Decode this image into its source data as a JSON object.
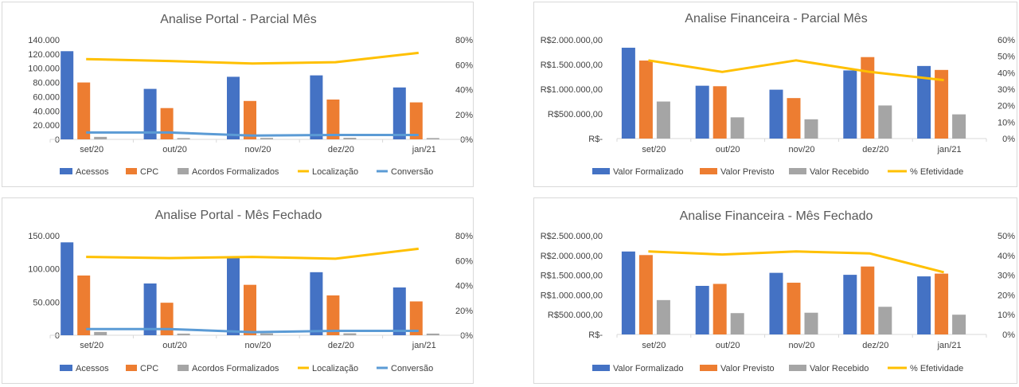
{
  "chart_data": [
    {
      "type": "bar",
      "title": "Analise Portal - Parcial Mês",
      "categories": [
        "set/20",
        "out/20",
        "nov/20",
        "dez/20",
        "jan/21"
      ],
      "y_ticks": [
        "0",
        "20.000",
        "40.000",
        "60.000",
        "80.000",
        "100.000",
        "120.000",
        "140.000"
      ],
      "ylim": [
        0,
        140000
      ],
      "y2_ticks": [
        "0%",
        "20%",
        "40%",
        "60%",
        "80%"
      ],
      "y2lim": [
        0,
        0.8
      ],
      "grid": false,
      "legend_position": "bottom",
      "series": [
        {
          "name": "Acessos",
          "kind": "bar",
          "color": "#4472C4",
          "values": [
            124000,
            71000,
            88000,
            90000,
            73000
          ]
        },
        {
          "name": "CPC",
          "kind": "bar",
          "color": "#ED7D31",
          "values": [
            80000,
            44000,
            54000,
            56000,
            52000
          ]
        },
        {
          "name": "Acordos Formalizados",
          "kind": "bar",
          "color": "#A5A5A5",
          "values": [
            3500,
            1800,
            2000,
            2200,
            1800
          ]
        },
        {
          "name": "Localização",
          "kind": "line",
          "axis": "secondary",
          "color": "#FFC000",
          "values": [
            0.645,
            0.63,
            0.61,
            0.62,
            0.695
          ]
        },
        {
          "name": "Conversão",
          "kind": "line",
          "axis": "secondary",
          "color": "#5B9BD5",
          "values": [
            0.055,
            0.055,
            0.03,
            0.035,
            0.035
          ]
        }
      ]
    },
    {
      "type": "bar",
      "title": "Analise Financeira - Parcial Mês",
      "categories": [
        "set/20",
        "out/20",
        "nov/20",
        "dez/20",
        "jan/21"
      ],
      "y_ticks": [
        "R$-",
        "R$500.000,00",
        "R$1.000.000,00",
        "R$1.500.000,00",
        "R$2.000.000,00"
      ],
      "ylim": [
        0,
        2000000
      ],
      "y2_ticks": [
        "0%",
        "10%",
        "20%",
        "30%",
        "40%",
        "50%",
        "60%"
      ],
      "y2lim": [
        0,
        0.6
      ],
      "grid": false,
      "legend_position": "bottom",
      "series": [
        {
          "name": "Valor Formalizado",
          "kind": "bar",
          "color": "#4472C4",
          "values": [
            1840000,
            1070000,
            990000,
            1380000,
            1470000
          ]
        },
        {
          "name": "Valor Previsto",
          "kind": "bar",
          "color": "#ED7D31",
          "values": [
            1580000,
            1060000,
            820000,
            1650000,
            1390000
          ]
        },
        {
          "name": "Valor Recebido",
          "kind": "bar",
          "color": "#A5A5A5",
          "values": [
            750000,
            430000,
            390000,
            670000,
            490000
          ]
        },
        {
          "name": "% Efetividade",
          "kind": "line",
          "axis": "secondary",
          "color": "#FFC000",
          "values": [
            0.475,
            0.405,
            0.475,
            0.405,
            0.355
          ]
        }
      ]
    },
    {
      "type": "bar",
      "title": "Analise Portal - Mês Fechado",
      "categories": [
        "set/20",
        "out/20",
        "nov/20",
        "dez/20",
        "jan/21"
      ],
      "y_ticks": [
        "0",
        "50.000",
        "100.000",
        "150.000"
      ],
      "ylim": [
        0,
        150000
      ],
      "y2_ticks": [
        "0%",
        "20%",
        "40%",
        "60%",
        "80%"
      ],
      "y2lim": [
        0,
        0.8
      ],
      "grid": false,
      "legend_position": "bottom",
      "series": [
        {
          "name": "Acessos",
          "kind": "bar",
          "color": "#4472C4",
          "values": [
            140000,
            78000,
            118000,
            95000,
            72000
          ]
        },
        {
          "name": "CPC",
          "kind": "bar",
          "color": "#ED7D31",
          "values": [
            90000,
            49000,
            76000,
            60000,
            51000
          ]
        },
        {
          "name": "Acordos Formalizados",
          "kind": "bar",
          "color": "#A5A5A5",
          "values": [
            5000,
            2500,
            2800,
            2900,
            2500
          ]
        },
        {
          "name": "Localização",
          "kind": "line",
          "axis": "secondary",
          "color": "#FFC000",
          "values": [
            0.63,
            0.62,
            0.63,
            0.615,
            0.695
          ]
        },
        {
          "name": "Conversão",
          "kind": "line",
          "axis": "secondary",
          "color": "#5B9BD5",
          "values": [
            0.05,
            0.05,
            0.025,
            0.035,
            0.035
          ]
        }
      ]
    },
    {
      "type": "bar",
      "title": "Analise Financeira - Mês Fechado",
      "categories": [
        "set/20",
        "out/20",
        "nov/20",
        "dez/20",
        "jan/21"
      ],
      "y_ticks": [
        "R$-",
        "R$500.000,00",
        "R$1.000.000,00",
        "R$1.500.000,00",
        "R$2.000.000,00",
        "R$2.500.000,00"
      ],
      "ylim": [
        0,
        2500000
      ],
      "y2_ticks": [
        "0%",
        "10%",
        "20%",
        "30%",
        "40%",
        "50%"
      ],
      "y2lim": [
        0,
        0.5
      ],
      "grid": false,
      "legend_position": "bottom",
      "series": [
        {
          "name": "Valor Formalizado",
          "kind": "bar",
          "color": "#4472C4",
          "values": [
            2100000,
            1230000,
            1560000,
            1510000,
            1470000
          ]
        },
        {
          "name": "Valor Previsto",
          "kind": "bar",
          "color": "#ED7D31",
          "values": [
            2010000,
            1280000,
            1310000,
            1720000,
            1540000
          ]
        },
        {
          "name": "Valor Recebido",
          "kind": "bar",
          "color": "#A5A5A5",
          "values": [
            870000,
            540000,
            550000,
            700000,
            500000
          ]
        },
        {
          "name": "% Efetividade",
          "kind": "line",
          "axis": "secondary",
          "color": "#FFC000",
          "values": [
            0.42,
            0.405,
            0.42,
            0.41,
            0.315
          ]
        }
      ]
    }
  ]
}
